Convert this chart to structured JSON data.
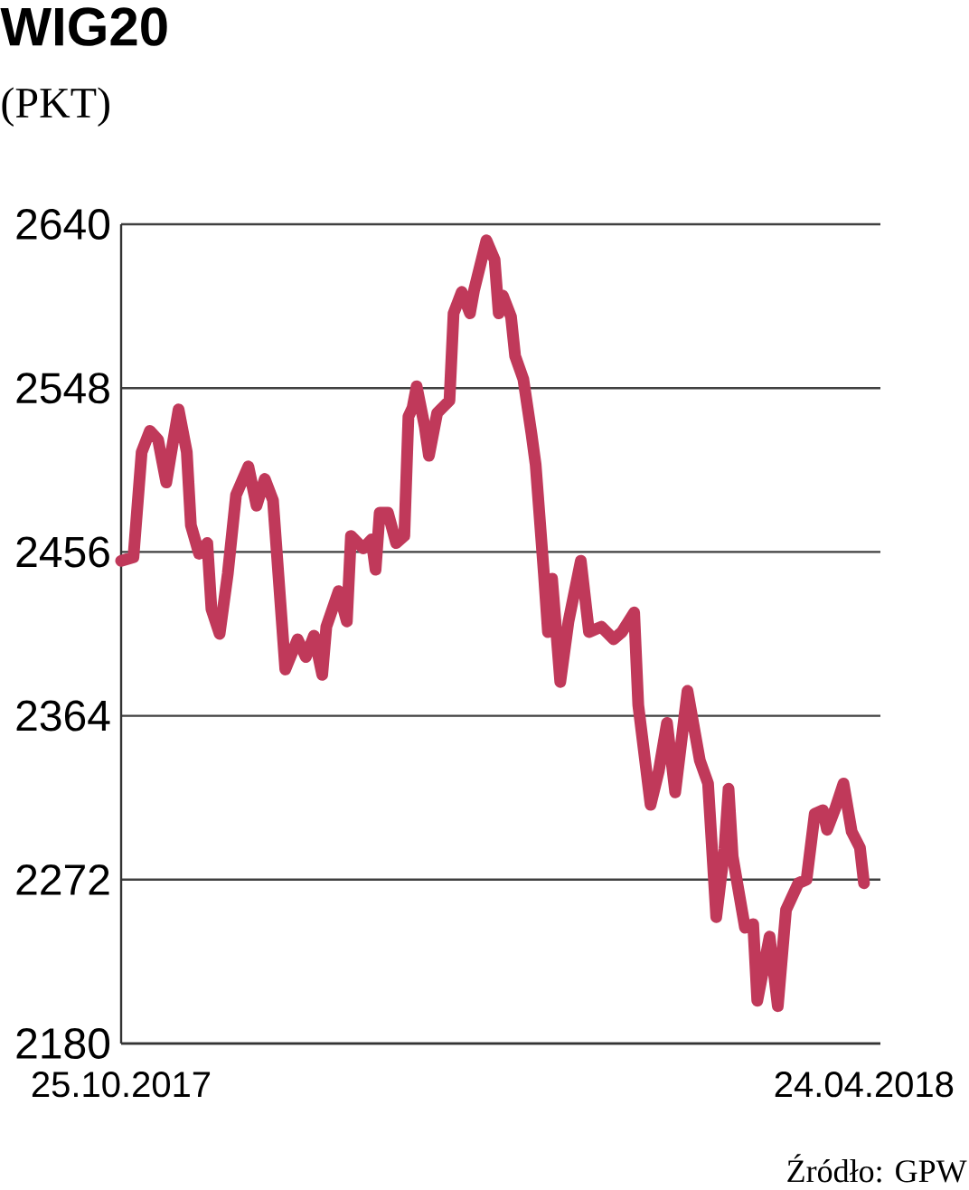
{
  "chart_data": {
    "type": "line",
    "title": "WIG20",
    "subtitle": "(PKT)",
    "annotations": [
      "Źródło: GPW"
    ],
    "x": [
      "2017-10-25",
      "2017-10-28",
      "2017-10-30",
      "2017-11-01",
      "2017-11-03",
      "2017-11-05",
      "2017-11-06",
      "2017-11-08",
      "2017-11-10",
      "2017-11-11",
      "2017-11-13",
      "2017-11-15",
      "2017-11-16",
      "2017-11-18",
      "2017-11-20",
      "2017-11-22",
      "2017-11-25",
      "2017-11-27",
      "2017-11-29",
      "2017-12-01",
      "2017-12-04",
      "2017-12-07",
      "2017-12-09",
      "2017-12-11",
      "2017-12-13",
      "2017-12-14",
      "2017-12-17",
      "2017-12-19",
      "2017-12-20",
      "2017-12-23",
      "2017-12-25",
      "2017-12-26",
      "2017-12-27",
      "2017-12-29",
      "2017-12-31",
      "2018-01-02",
      "2018-01-03",
      "2018-01-04",
      "2018-01-05",
      "2018-01-07",
      "2018-01-08",
      "2018-01-10",
      "2018-01-13",
      "2018-01-14",
      "2018-01-16",
      "2018-01-18",
      "2018-01-19",
      "2018-01-22",
      "2018-01-24",
      "2018-01-25",
      "2018-01-26",
      "2018-01-28",
      "2018-01-29",
      "2018-01-31",
      "2018-02-02",
      "2018-02-03",
      "2018-02-05",
      "2018-02-06",
      "2018-02-07",
      "2018-02-09",
      "2018-02-11",
      "2018-02-14",
      "2018-02-16",
      "2018-02-19",
      "2018-02-22",
      "2018-02-24",
      "2018-02-27",
      "2018-02-28",
      "2018-03-03",
      "2018-03-05",
      "2018-03-07",
      "2018-03-09",
      "2018-03-12",
      "2018-03-15",
      "2018-03-17",
      "2018-03-19",
      "2018-03-21",
      "2018-03-22",
      "2018-03-23",
      "2018-03-26",
      "2018-03-28",
      "2018-03-29",
      "2018-04-01",
      "2018-04-03",
      "2018-04-05",
      "2018-04-08",
      "2018-04-10",
      "2018-04-12",
      "2018-04-14",
      "2018-04-15",
      "2018-04-17",
      "2018-04-19",
      "2018-04-21",
      "2018-04-23",
      "2018-04-24"
    ],
    "series": [
      {
        "color": "#c0395a",
        "values": [
          2451,
          2453,
          2512,
          2524,
          2519,
          2495,
          2509,
          2536,
          2512,
          2471,
          2455,
          2461,
          2424,
          2410,
          2444,
          2488,
          2504,
          2482,
          2497,
          2485,
          2390,
          2407,
          2397,
          2409,
          2387,
          2414,
          2434,
          2417,
          2465,
          2458,
          2463,
          2446,
          2478,
          2478,
          2461,
          2465,
          2532,
          2537,
          2549,
          2526,
          2510,
          2534,
          2541,
          2590,
          2602,
          2590,
          2603,
          2631,
          2620,
          2590,
          2600,
          2588,
          2566,
          2553,
          2522,
          2505,
          2444,
          2411,
          2441,
          2383,
          2417,
          2451,
          2411,
          2414,
          2407,
          2411,
          2422,
          2370,
          2314,
          2333,
          2360,
          2321,
          2378,
          2339,
          2326,
          2251,
          2289,
          2323,
          2285,
          2245,
          2247,
          2204,
          2240,
          2201,
          2255,
          2270,
          2272,
          2309,
          2311,
          2300,
          2312,
          2326,
          2299,
          2290,
          2270
        ]
      }
    ],
    "xlim": [
      "2017-10-25",
      "2018-04-28"
    ],
    "xticks": [
      {
        "value": "2017-10-25",
        "label": "25.10.2017"
      },
      {
        "value": "2018-04-24",
        "label": "24.04.2018"
      }
    ],
    "ylim": [
      2180,
      2640
    ],
    "yticks": [
      2180,
      2272,
      2364,
      2456,
      2548,
      2640
    ],
    "grid": "y",
    "line_style": "solid"
  }
}
